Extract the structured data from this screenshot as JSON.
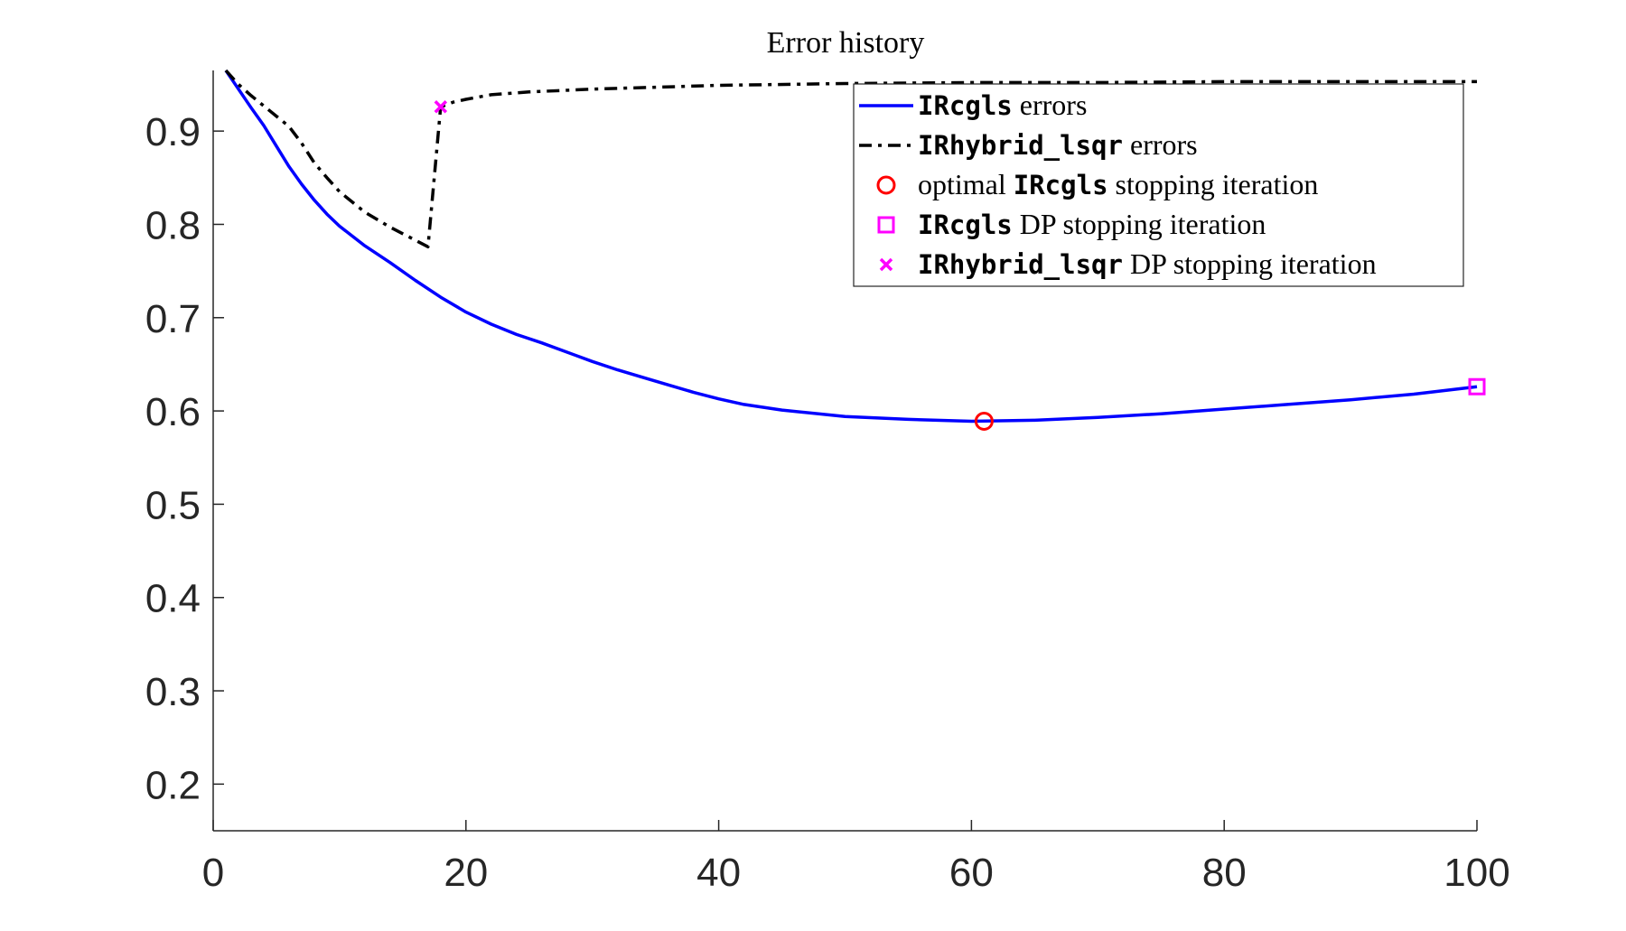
{
  "chart_data": {
    "type": "line",
    "title": "Error history",
    "xlabel": "",
    "ylabel": "",
    "xlim": [
      0,
      100
    ],
    "ylim": [
      0.15,
      0.965
    ],
    "xticks": [
      0,
      20,
      40,
      60,
      80,
      100
    ],
    "xtick_labels": [
      "0",
      "20",
      "40",
      "60",
      "80",
      "100"
    ],
    "yticks": [
      0.2,
      0.3,
      0.4,
      0.5,
      0.6,
      0.7,
      0.8,
      0.9
    ],
    "ytick_labels": [
      "0.2",
      "0.3",
      "0.4",
      "0.5",
      "0.6",
      "0.7",
      "0.8",
      "0.9"
    ],
    "grid": false,
    "legend_position": "top-right",
    "series": [
      {
        "name": "IRcgls errors",
        "color": "#0000ff",
        "style": "solid",
        "x": [
          1,
          2,
          3,
          4,
          5,
          6,
          7,
          8,
          9,
          10,
          12,
          14,
          16,
          18,
          20,
          22,
          24,
          26,
          28,
          30,
          32,
          34,
          36,
          38,
          40,
          42,
          45,
          50,
          55,
          60,
          65,
          70,
          75,
          80,
          85,
          90,
          95,
          100
        ],
        "y": [
          0.965,
          0.945,
          0.925,
          0.906,
          0.884,
          0.862,
          0.843,
          0.826,
          0.811,
          0.798,
          0.777,
          0.759,
          0.74,
          0.722,
          0.706,
          0.693,
          0.682,
          0.673,
          0.663,
          0.653,
          0.644,
          0.636,
          0.628,
          0.62,
          0.613,
          0.607,
          0.601,
          0.594,
          0.591,
          0.589,
          0.59,
          0.593,
          0.597,
          0.602,
          0.607,
          0.612,
          0.618,
          0.626
        ]
      },
      {
        "name": "IRhybrid_lsqr errors",
        "color": "#000000",
        "style": "dashdot",
        "x": [
          1,
          2,
          3,
          4,
          5,
          6,
          7,
          8,
          9,
          10,
          12,
          14,
          16,
          17,
          18,
          19,
          20,
          22,
          25,
          30,
          35,
          40,
          50,
          60,
          70,
          80,
          90,
          100
        ],
        "y": [
          0.965,
          0.95,
          0.938,
          0.927,
          0.916,
          0.905,
          0.887,
          0.866,
          0.85,
          0.835,
          0.813,
          0.797,
          0.783,
          0.776,
          0.926,
          0.931,
          0.934,
          0.939,
          0.942,
          0.945,
          0.947,
          0.949,
          0.951,
          0.952,
          0.952,
          0.953,
          0.953,
          0.953
        ]
      }
    ],
    "markers": [
      {
        "name": "optimal IRcgls stopping iteration",
        "shape": "circle",
        "color": "#ff0000",
        "x": 61,
        "y": 0.589
      },
      {
        "name": "IRcgls DP stopping iteration",
        "shape": "square",
        "color": "#ff00ff",
        "x": 100,
        "y": 0.626
      },
      {
        "name": "IRhybrid_lsqr DP stopping iteration",
        "shape": "x",
        "color": "#ff00ff",
        "x": 18,
        "y": 0.926
      }
    ],
    "legend": [
      {
        "kind": "solid",
        "color": "#0000ff",
        "parts": [
          {
            "t": "IRcgls",
            "mono": true
          },
          {
            "t": " errors",
            "mono": false
          }
        ]
      },
      {
        "kind": "dashdot",
        "color": "#000000",
        "parts": [
          {
            "t": "IRhybrid_lsqr",
            "mono": true
          },
          {
            "t": " errors",
            "mono": false
          }
        ]
      },
      {
        "kind": "circle",
        "color": "#ff0000",
        "parts": [
          {
            "t": "optimal ",
            "mono": false
          },
          {
            "t": "IRcgls",
            "mono": true
          },
          {
            "t": " stopping iteration",
            "mono": false
          }
        ]
      },
      {
        "kind": "square",
        "color": "#ff00ff",
        "parts": [
          {
            "t": "IRcgls",
            "mono": true
          },
          {
            "t": " DP stopping iteration",
            "mono": false
          }
        ]
      },
      {
        "kind": "x",
        "color": "#ff00ff",
        "parts": [
          {
            "t": "IRhybrid_lsqr",
            "mono": true
          },
          {
            "t": " DP stopping iteration",
            "mono": false
          }
        ]
      }
    ]
  }
}
